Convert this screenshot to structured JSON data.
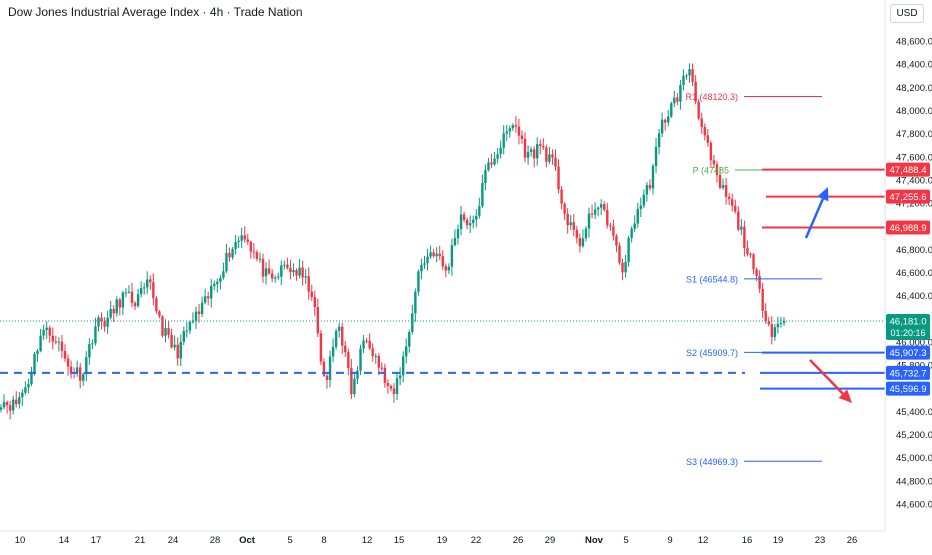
{
  "header": {
    "title": "Dow Jones Industrial Average Index · 4h · Trade Nation",
    "currency": "USD"
  },
  "colors": {
    "up": "#089981",
    "down": "#f23645",
    "support": "#2962ff",
    "resistance": "#f23645",
    "pivot": "#4caf50"
  },
  "chart_data": {
    "type": "candlestick",
    "title": "Dow Jones Industrial Average Index · 4h · Trade Nation",
    "ylim": [
      44500,
      48800
    ],
    "y_ticks": [
      "48,600.0",
      "48,400.0",
      "48,200.0",
      "48,000.0",
      "47,800.0",
      "47,600.0",
      "47,400.0",
      "47,200.0",
      "46,800.0",
      "46,600.0",
      "46,400.0",
      "46,000.0",
      "45,800.0",
      "45,400.0",
      "45,200.0",
      "45,000.0",
      "44,800.0",
      "44,600.0"
    ],
    "x_ticks": [
      "10",
      "14",
      "17",
      "21",
      "24",
      "28",
      "Oct",
      "5",
      "8",
      "12",
      "15",
      "19",
      "22",
      "26",
      "29",
      "Nov",
      "5",
      "9",
      "12",
      "16",
      "19",
      "23",
      "26"
    ],
    "last_price": {
      "label": "46,181.0",
      "countdown": "01:20:16",
      "value": 46181
    },
    "pivots": [
      {
        "name": "R1",
        "label": "R1 (48120.3)",
        "value": 48120.3
      },
      {
        "name": "P",
        "label": "P (47485",
        "value": 47485
      },
      {
        "name": "S1",
        "label": "S1 (46544.8)",
        "value": 46544.8
      },
      {
        "name": "S2",
        "label": "S2 (45909.7)",
        "value": 45909.7
      },
      {
        "name": "S3",
        "label": "S3 (44969.3)",
        "value": 44969.3
      }
    ],
    "levels": [
      {
        "label": "47,488.4",
        "value": 47488.4,
        "kind": "resistance"
      },
      {
        "label": "47,255.6",
        "value": 47255.6,
        "kind": "resistance"
      },
      {
        "label": "46,988.9",
        "value": 46988.9,
        "kind": "resistance"
      },
      {
        "label": "45,907.3",
        "value": 45907.3,
        "kind": "support"
      },
      {
        "label": "45,732.7",
        "value": 45732.7,
        "kind": "support"
      },
      {
        "label": "45,596.9",
        "value": 45596.9,
        "kind": "support"
      }
    ],
    "anchors": [
      45500,
      45450,
      45650,
      46100,
      46050,
      45780,
      45720,
      46150,
      46200,
      46400,
      46350,
      46500,
      46100,
      45900,
      46150,
      46300,
      46550,
      46800,
      46950,
      46700,
      46500,
      46650,
      46600,
      46450,
      45600,
      46200,
      45550,
      46100,
      45800,
      45500,
      45950,
      46650,
      46800,
      46600,
      47100,
      47000,
      47500,
      47700,
      47900,
      47600,
      47700,
      47500,
      47000,
      46850,
      47200,
      47050,
      46600,
      47100,
      47350,
      47900,
      48100,
      48380,
      47800,
      47400,
      47200,
      46900,
      46500,
      46100,
      46181
    ]
  }
}
